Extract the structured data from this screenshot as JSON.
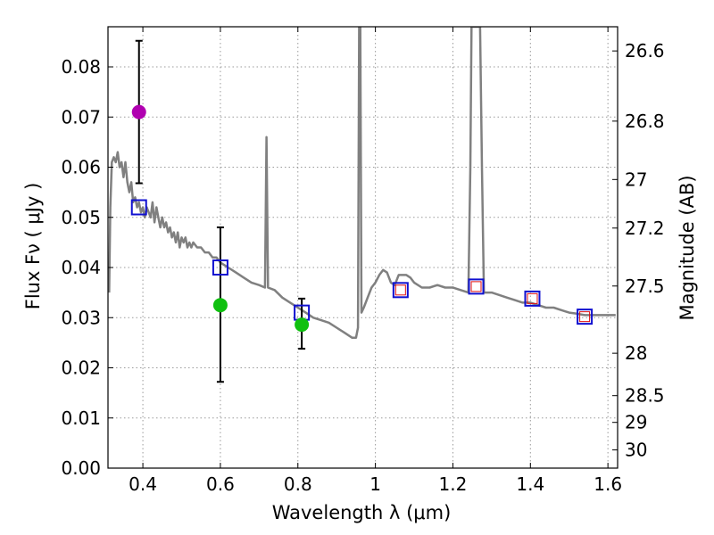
{
  "chart_data": {
    "type": "scatter",
    "xlabel": "Wavelength  λ (μm)",
    "ylabel": "Flux  Fν  ( μJy )",
    "y2label": "Magnitude (AB)",
    "xlim": [
      0.31,
      1.625
    ],
    "ylim": [
      0.0,
      0.088
    ],
    "x_ticks": [
      0.4,
      0.6,
      0.8,
      1.0,
      1.2,
      1.4,
      1.6
    ],
    "x_tick_labels": [
      "0.4",
      "0.6",
      "0.8",
      "1",
      "1.2",
      "1.4",
      "1.6"
    ],
    "y_ticks": [
      0.0,
      0.01,
      0.02,
      0.03,
      0.04,
      0.05,
      0.06,
      0.07,
      0.08
    ],
    "y_tick_labels": [
      "0.00",
      "0.01",
      "0.02",
      "0.03",
      "0.04",
      "0.05",
      "0.06",
      "0.07",
      "0.08"
    ],
    "magnitude_ticks": [
      {
        "label": "26.6",
        "mag": 26.6
      },
      {
        "label": "26.8",
        "mag": 26.8
      },
      {
        "label": "27",
        "mag": 27.0
      },
      {
        "label": "27.2",
        "mag": 27.2
      },
      {
        "label": "27.5",
        "mag": 27.5
      },
      {
        "label": "28",
        "mag": 28.0
      },
      {
        "label": "28.5",
        "mag": 28.5
      },
      {
        "label": "29",
        "mag": 29.0
      },
      {
        "label": "30",
        "mag": 30.0
      }
    ],
    "grid": true,
    "colors": {
      "sed": "#808080",
      "model_box": "#1010d0",
      "model_inner": "#e01010",
      "obs_green": "#10c010",
      "obs_magenta": "#b000b0",
      "errorbar": "#000000"
    },
    "series": [
      {
        "name": "sed_model",
        "kind": "line",
        "points": [
          [
            0.313,
            0.035
          ],
          [
            0.316,
            0.052
          ],
          [
            0.32,
            0.061
          ],
          [
            0.325,
            0.062
          ],
          [
            0.33,
            0.061
          ],
          [
            0.335,
            0.063
          ],
          [
            0.34,
            0.06
          ],
          [
            0.345,
            0.061
          ],
          [
            0.35,
            0.058
          ],
          [
            0.355,
            0.061
          ],
          [
            0.36,
            0.057
          ],
          [
            0.365,
            0.055
          ],
          [
            0.37,
            0.057
          ],
          [
            0.375,
            0.053
          ],
          [
            0.38,
            0.054
          ],
          [
            0.385,
            0.052
          ],
          [
            0.39,
            0.053
          ],
          [
            0.395,
            0.051
          ],
          [
            0.4,
            0.052
          ],
          [
            0.405,
            0.05
          ],
          [
            0.41,
            0.052
          ],
          [
            0.415,
            0.051
          ],
          [
            0.42,
            0.05
          ],
          [
            0.425,
            0.053
          ],
          [
            0.43,
            0.049
          ],
          [
            0.435,
            0.052
          ],
          [
            0.44,
            0.05
          ],
          [
            0.445,
            0.048
          ],
          [
            0.45,
            0.05
          ],
          [
            0.455,
            0.048
          ],
          [
            0.46,
            0.049
          ],
          [
            0.465,
            0.047
          ],
          [
            0.47,
            0.048
          ],
          [
            0.475,
            0.046
          ],
          [
            0.48,
            0.047
          ],
          [
            0.485,
            0.045
          ],
          [
            0.49,
            0.047
          ],
          [
            0.495,
            0.044
          ],
          [
            0.5,
            0.046
          ],
          [
            0.505,
            0.045
          ],
          [
            0.51,
            0.046
          ],
          [
            0.515,
            0.044
          ],
          [
            0.52,
            0.045
          ],
          [
            0.525,
            0.044
          ],
          [
            0.53,
            0.045
          ],
          [
            0.54,
            0.044
          ],
          [
            0.55,
            0.044
          ],
          [
            0.56,
            0.043
          ],
          [
            0.57,
            0.043
          ],
          [
            0.58,
            0.042
          ],
          [
            0.59,
            0.042
          ],
          [
            0.6,
            0.041
          ],
          [
            0.62,
            0.04
          ],
          [
            0.64,
            0.039
          ],
          [
            0.66,
            0.038
          ],
          [
            0.68,
            0.037
          ],
          [
            0.7,
            0.0365
          ],
          [
            0.715,
            0.036
          ],
          [
            0.719,
            0.066
          ],
          [
            0.723,
            0.036
          ],
          [
            0.74,
            0.0355
          ],
          [
            0.76,
            0.034
          ],
          [
            0.78,
            0.033
          ],
          [
            0.8,
            0.032
          ],
          [
            0.82,
            0.031
          ],
          [
            0.84,
            0.03
          ],
          [
            0.86,
            0.0295
          ],
          [
            0.88,
            0.029
          ],
          [
            0.9,
            0.028
          ],
          [
            0.92,
            0.027
          ],
          [
            0.94,
            0.026
          ],
          [
            0.95,
            0.026
          ],
          [
            0.955,
            0.028
          ],
          [
            0.958,
            0.088
          ],
          [
            0.961,
            0.088
          ],
          [
            0.964,
            0.031
          ],
          [
            0.97,
            0.032
          ],
          [
            0.98,
            0.034
          ],
          [
            0.99,
            0.036
          ],
          [
            1.0,
            0.037
          ],
          [
            1.01,
            0.0385
          ],
          [
            1.02,
            0.0395
          ],
          [
            1.03,
            0.039
          ],
          [
            1.04,
            0.037
          ],
          [
            1.05,
            0.0365
          ],
          [
            1.06,
            0.0385
          ],
          [
            1.07,
            0.0385
          ],
          [
            1.08,
            0.0385
          ],
          [
            1.09,
            0.038
          ],
          [
            1.1,
            0.037
          ],
          [
            1.12,
            0.036
          ],
          [
            1.14,
            0.036
          ],
          [
            1.16,
            0.0365
          ],
          [
            1.18,
            0.036
          ],
          [
            1.2,
            0.036
          ],
          [
            1.22,
            0.0355
          ],
          [
            1.24,
            0.035
          ],
          [
            1.245,
            0.06
          ],
          [
            1.248,
            0.088
          ],
          [
            1.27,
            0.088
          ],
          [
            1.275,
            0.06
          ],
          [
            1.28,
            0.035
          ],
          [
            1.3,
            0.035
          ],
          [
            1.32,
            0.0345
          ],
          [
            1.34,
            0.034
          ],
          [
            1.36,
            0.0335
          ],
          [
            1.38,
            0.033
          ],
          [
            1.4,
            0.033
          ],
          [
            1.42,
            0.0325
          ],
          [
            1.44,
            0.032
          ],
          [
            1.46,
            0.032
          ],
          [
            1.48,
            0.0315
          ],
          [
            1.5,
            0.031
          ],
          [
            1.52,
            0.0308
          ],
          [
            1.54,
            0.0305
          ],
          [
            1.56,
            0.0305
          ],
          [
            1.58,
            0.0305
          ],
          [
            1.6,
            0.0305
          ],
          [
            1.62,
            0.0305
          ]
        ]
      },
      {
        "name": "model_photometry",
        "kind": "square",
        "points": [
          [
            0.39,
            0.052
          ],
          [
            0.6,
            0.04
          ],
          [
            0.81,
            0.031
          ],
          [
            1.065,
            0.0355
          ],
          [
            1.26,
            0.0362
          ],
          [
            1.405,
            0.0338
          ],
          [
            1.54,
            0.0302
          ]
        ]
      },
      {
        "name": "model_photometry_inner",
        "kind": "inner-square",
        "points": [
          [
            1.065,
            0.0355
          ],
          [
            1.26,
            0.0362
          ],
          [
            1.405,
            0.0338
          ],
          [
            1.54,
            0.0302
          ]
        ]
      },
      {
        "name": "observed_green",
        "kind": "circle",
        "points": [
          [
            0.6,
            0.0325
          ],
          [
            0.81,
            0.0286
          ]
        ]
      },
      {
        "name": "observed_magenta",
        "kind": "circle",
        "points": [
          [
            0.39,
            0.071
          ]
        ]
      },
      {
        "name": "error_bars",
        "kind": "errorbar",
        "bars": [
          {
            "x": 0.39,
            "low": 0.0568,
            "high": 0.0852
          },
          {
            "x": 0.6,
            "low": 0.0172,
            "high": 0.048
          },
          {
            "x": 0.81,
            "low": 0.0238,
            "high": 0.0338
          }
        ]
      }
    ]
  }
}
